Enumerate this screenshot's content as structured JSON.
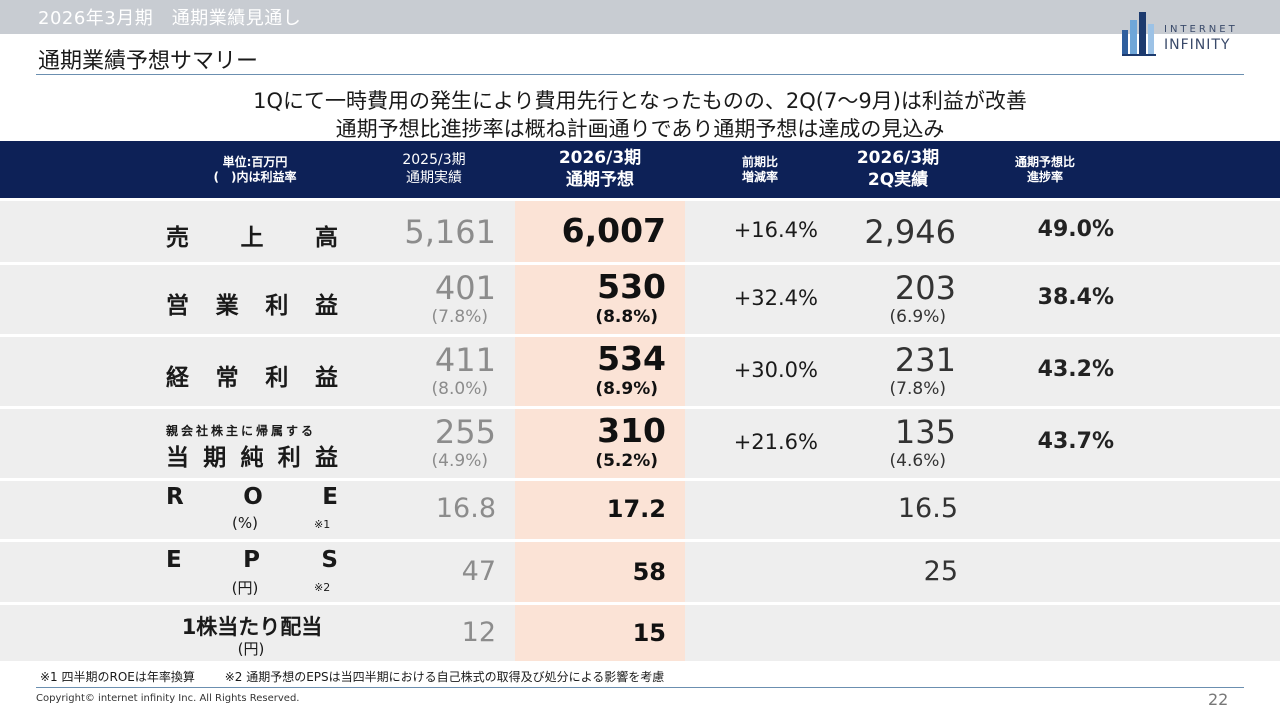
{
  "header": {
    "period": "2026年3月期　通期業績見通し",
    "title": "通期業績予想サマリー",
    "logo_top": "INTERNET",
    "logo_bottom": "INFINITY"
  },
  "headline": {
    "line1": "1Qにて一時費用の発生により費用先行となったものの、2Q(7～9月)は利益が改善",
    "line2": "通期予想比進捗率は概ね計画通りであり通期予想は達成の見込み"
  },
  "table": {
    "columns": {
      "unit_line1": "単位:百万円",
      "unit_line2": "(　)内は利益率",
      "prev_line1": "2025/3期",
      "prev_line2": "通期実績",
      "plan_line1": "2026/3期",
      "plan_line2": "通期予想",
      "chg_line1": "前期比",
      "chg_line2": "増減率",
      "q2_line1": "2026/3期",
      "q2_line2": "2Q実績",
      "prog_line1": "通期予想比",
      "prog_line2": "進捗率"
    },
    "rows": [
      {
        "label_chars": [
          "売",
          "上",
          "高"
        ],
        "prev": "5,161",
        "plan": "6,007",
        "change": "+16.4%",
        "q2": "2,946",
        "progress": "49.0%"
      },
      {
        "label_chars": [
          "営",
          "業",
          "利",
          "益"
        ],
        "prev": "401",
        "prev_rate": "(7.8%)",
        "plan": "530",
        "plan_rate": "(8.8%)",
        "change": "+32.4%",
        "q2": "203",
        "q2_rate": "(6.9%)",
        "progress": "38.4%"
      },
      {
        "label_chars": [
          "経",
          "常",
          "利",
          "益"
        ],
        "prev": "411",
        "prev_rate": "(8.0%)",
        "plan": "534",
        "plan_rate": "(8.9%)",
        "change": "+30.0%",
        "q2": "231",
        "q2_rate": "(7.8%)",
        "progress": "43.2%"
      },
      {
        "label_sub": "親会社株主に帰属する",
        "label_chars": [
          "当",
          "期",
          "純",
          "利",
          "益"
        ],
        "prev": "255",
        "prev_rate": "(4.9%)",
        "plan": "310",
        "plan_rate": "(5.2%)",
        "change": "+21.6%",
        "q2": "135",
        "q2_rate": "(4.6%)",
        "progress": "43.7%"
      },
      {
        "label_chars": [
          "R",
          "O",
          "E"
        ],
        "label_paren": "(%)",
        "label_note": "※1",
        "prev": "16.8",
        "plan": "17.2",
        "q2": "16.5"
      },
      {
        "label_chars": [
          "E",
          "P",
          "S"
        ],
        "label_paren": "(円)",
        "label_note": "※2",
        "prev": "47",
        "plan": "58",
        "q2": "25"
      },
      {
        "label_main": "1株当たり配当",
        "label_paren": "(円)",
        "prev": "12",
        "plan": "15"
      }
    ]
  },
  "footer": {
    "note1": "※1 四半期のROEは年率換算",
    "note2": "※2 通期予想のEPSは当四半期における自己株式の取得及び処分による影響を考慮",
    "copyright": "Copyright© internet infinity Inc. All Rights Reserved.",
    "page_number": "22"
  }
}
